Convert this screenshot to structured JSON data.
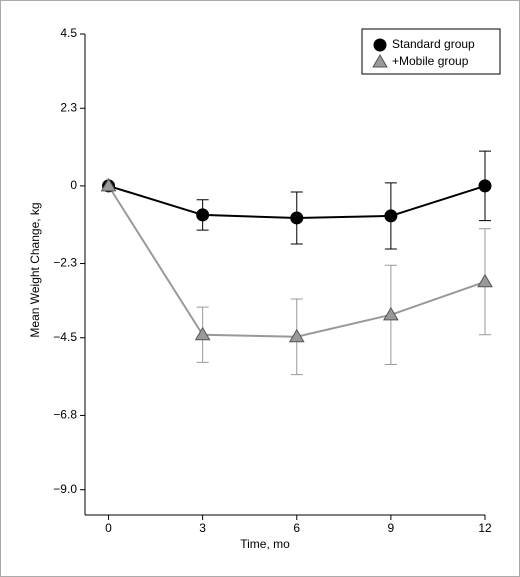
{
  "chart_data": {
    "type": "line",
    "x_label": "Time, mo",
    "y_label": "Mean Weight Change, kg",
    "x": [
      0,
      3,
      6,
      9,
      12
    ],
    "xlim": [
      -0.75,
      12
    ],
    "xticks": [
      0,
      3,
      6,
      9,
      12
    ],
    "ylim": [
      -9.75,
      4.5
    ],
    "yticks": [
      4.5,
      2.3,
      0,
      {
        "value": -2.3,
        "label": "−2.3"
      },
      {
        "value": -4.5,
        "label": "−4.5"
      },
      {
        "value": -6.8,
        "label": "−6.8"
      },
      {
        "value": -9.0,
        "label": "−9.0"
      }
    ],
    "legend": "top-right",
    "series": [
      {
        "name": "Standard group",
        "color": "#000000",
        "marker": "circle",
        "values": [
          0,
          -0.86,
          -0.95,
          -0.89,
          0
        ],
        "errors": [
          0,
          0.45,
          0.77,
          0.98,
          1.03
        ]
      },
      {
        "name": "+Mobile group",
        "color": "#999999",
        "marker": "triangle",
        "values": [
          0,
          -4.41,
          -4.47,
          -3.82,
          -2.84
        ],
        "errors": [
          0,
          0.82,
          1.12,
          1.47,
          1.57
        ]
      }
    ]
  }
}
